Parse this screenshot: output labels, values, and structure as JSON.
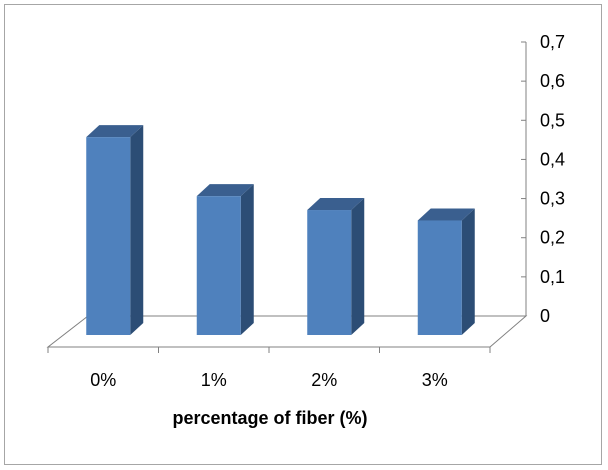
{
  "chart_data": {
    "type": "bar",
    "style": "3d-column",
    "categories": [
      "0%",
      "1%",
      "2%",
      "3%"
    ],
    "values": [
      0.57,
      0.4,
      0.36,
      0.33
    ],
    "title": "",
    "xlabel": "percentage of fiber (%)",
    "ylabel": "",
    "ylim": [
      0,
      0.7
    ],
    "yticks": [
      "0",
      "0,1",
      "0,2",
      "0,3",
      "0,4",
      "0,5",
      "0,6",
      "0,7"
    ],
    "y_axis_position": "right",
    "grid": false,
    "legend": "none",
    "colors": {
      "bar_front": "#4f81bd",
      "bar_side": "#2c4d75",
      "bar_top": "#3a5f8f",
      "axis": "#808080",
      "border": "#a6a6a6"
    }
  }
}
